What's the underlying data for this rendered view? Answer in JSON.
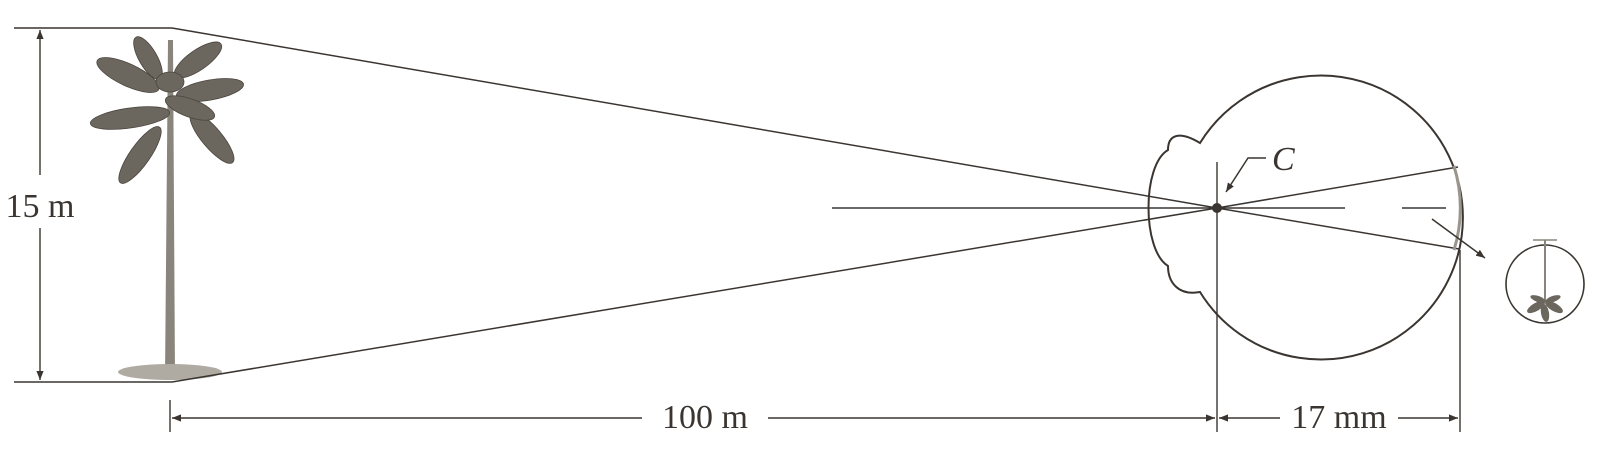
{
  "diagram": {
    "height_label": "15 m",
    "distance_label": "100 m",
    "eye_depth_label": "17 mm",
    "center_label": "C"
  },
  "colors": {
    "ink": "#3a3530",
    "foliage": "#6b665e",
    "trunk": "#8a857c"
  }
}
